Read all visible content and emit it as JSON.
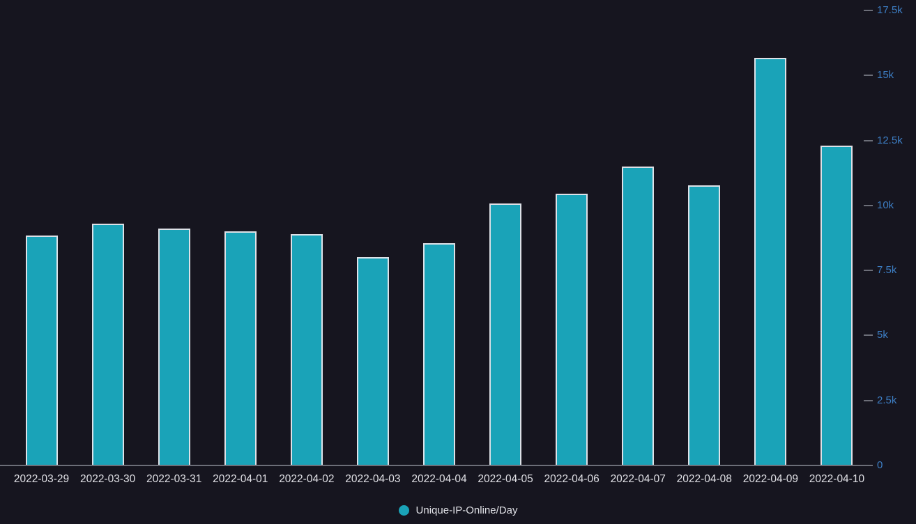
{
  "chart_data": {
    "type": "bar",
    "title": "",
    "categories": [
      "2022-03-29",
      "2022-03-30",
      "2022-03-31",
      "2022-04-01",
      "2022-04-02",
      "2022-04-03",
      "2022-04-04",
      "2022-04-05",
      "2022-04-06",
      "2022-04-07",
      "2022-04-08",
      "2022-04-09",
      "2022-04-10"
    ],
    "series": [
      {
        "name": "Unique-IP-Online/Day",
        "values": [
          8850,
          9300,
          9100,
          9000,
          8900,
          8000,
          8550,
          10080,
          10460,
          11500,
          10780,
          15680,
          12300
        ]
      }
    ],
    "xlabel": "",
    "ylabel": "",
    "ylim": [
      0,
      17500
    ],
    "y_ticks": [
      {
        "value": 0,
        "label": "0"
      },
      {
        "value": 2500,
        "label": "2.5k"
      },
      {
        "value": 5000,
        "label": "5k"
      },
      {
        "value": 7500,
        "label": "7.5k"
      },
      {
        "value": 10000,
        "label": "10k"
      },
      {
        "value": 12500,
        "label": "12.5k"
      },
      {
        "value": 15000,
        "label": "15k"
      },
      {
        "value": 17500,
        "label": "17.5k"
      }
    ],
    "grid": false,
    "legend_position": "bottom-center"
  },
  "legend": {
    "label": "Unique-IP-Online/Day"
  },
  "colors": {
    "background": "#16151F",
    "bar_fill": "#1AA3B8",
    "bar_border": "#DDE1E7",
    "y_axis_label": "#3D7EC4",
    "x_axis_label": "#E0E0E5",
    "axis_line": "#6C6E78",
    "legend_text": "#E0E1E6"
  }
}
